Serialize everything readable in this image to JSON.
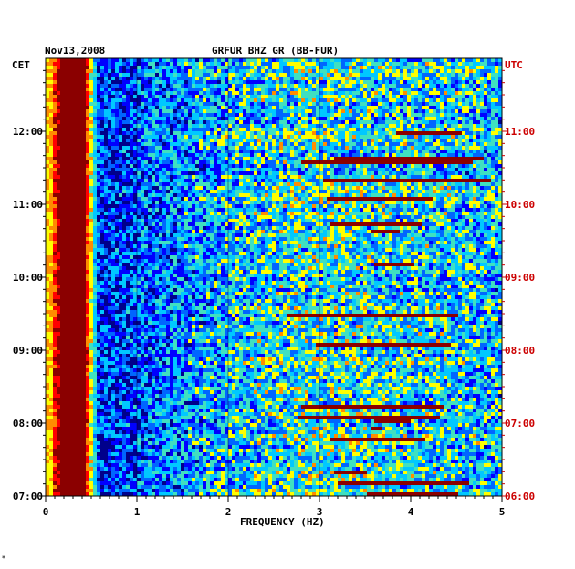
{
  "chart_data": {
    "type": "heatmap",
    "date": "Nov13,2008",
    "title": "GRFUR BHZ GR (BB-FUR)",
    "left_timezone": "CET",
    "right_timezone": "UTC",
    "xlabel": "FREQUENCY (HZ)",
    "xlim": [
      0,
      5
    ],
    "x_ticks": [
      "0",
      "1",
      "2",
      "3",
      "4",
      "5"
    ],
    "cet_ticks": [
      "07:00",
      "08:00",
      "09:00",
      "10:00",
      "11:00",
      "12:00"
    ],
    "utc_ticks": [
      "06:00",
      "07:00",
      "08:00",
      "09:00",
      "10:00",
      "11:00"
    ],
    "time_range_utc": [
      "06:00",
      "12:00"
    ],
    "colormap": [
      "#00008b",
      "#0000ff",
      "#0066ff",
      "#00c8ff",
      "#40e0c0",
      "#ffff00",
      "#ff8c00",
      "#ff0000",
      "#8b0000"
    ],
    "colors": {
      "utc_axis": "#cc0000",
      "axis": "#000000"
    }
  },
  "footer_mark": "*"
}
